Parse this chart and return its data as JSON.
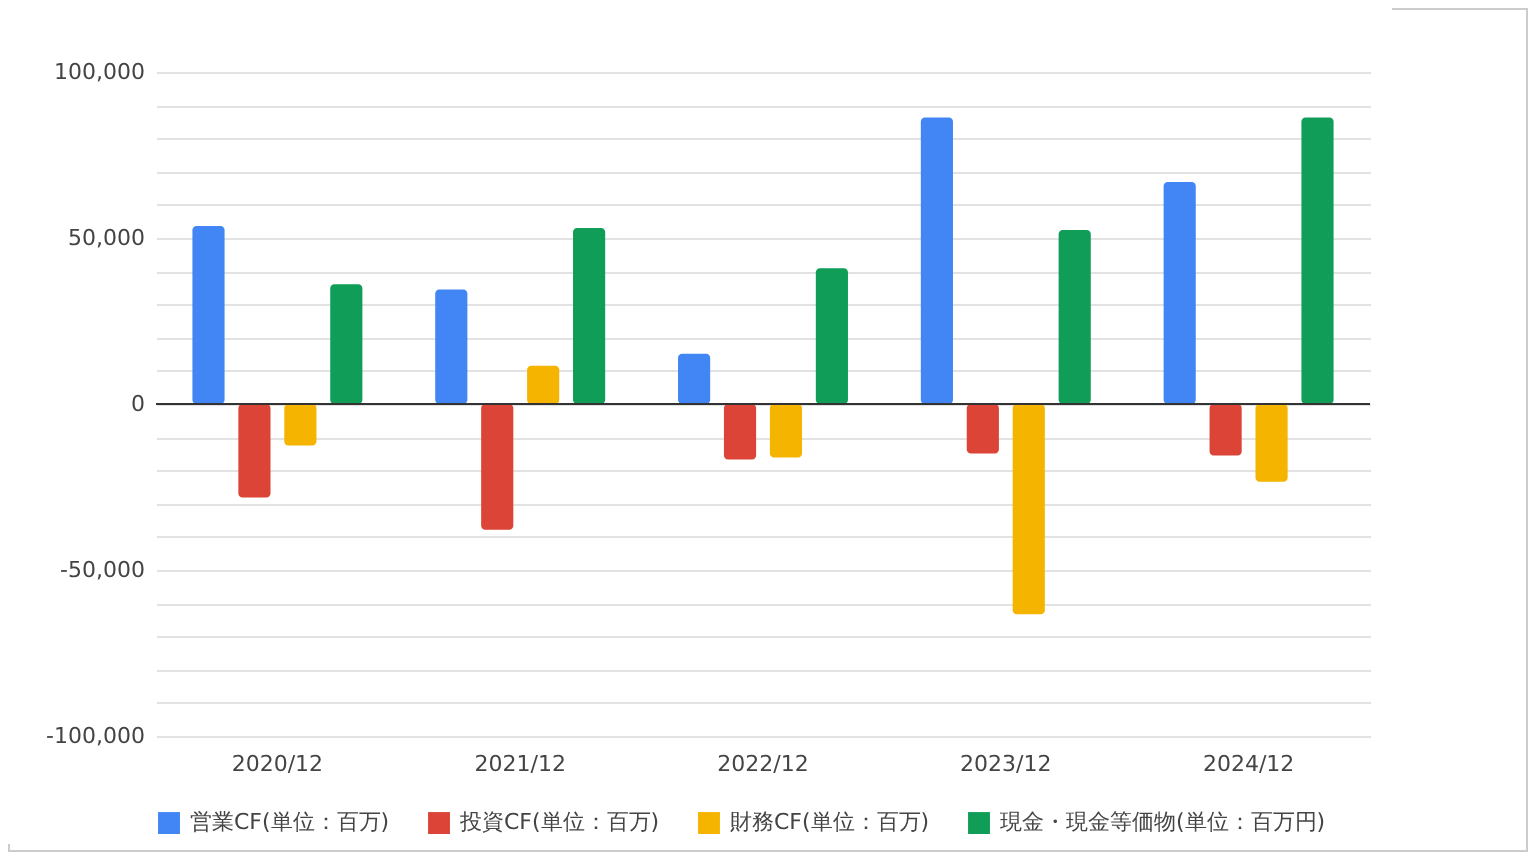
{
  "chart_data": {
    "type": "bar",
    "categories": [
      "2020/12",
      "2021/12",
      "2022/12",
      "2023/12",
      "2024/12"
    ],
    "series": [
      {
        "name": "営業CF(単位：百万)",
        "color": "#4285f4",
        "values": [
          53600,
          34500,
          15100,
          86300,
          66900
        ]
      },
      {
        "name": "投資CF(単位：百万)",
        "color": "#db4437",
        "values": [
          -28200,
          -37900,
          -16700,
          -14900,
          -15500
        ]
      },
      {
        "name": "財務CF(単位：百万)",
        "color": "#f4b400",
        "values": [
          -12500,
          11500,
          -16100,
          -63300,
          -23400
        ]
      },
      {
        "name": "現金・現金等価物(単位：百万円)",
        "color": "#0f9d58",
        "values": [
          36100,
          53000,
          40900,
          52400,
          86300
        ]
      }
    ],
    "ylim": [
      -100000,
      100000
    ],
    "yticks": [
      {
        "value": -100000,
        "label": "-100,000"
      },
      {
        "value": -90000,
        "label": null
      },
      {
        "value": -80000,
        "label": null
      },
      {
        "value": -70000,
        "label": null
      },
      {
        "value": -60000,
        "label": null
      },
      {
        "value": -50000,
        "label": "-50,000"
      },
      {
        "value": -40000,
        "label": null
      },
      {
        "value": -30000,
        "label": null
      },
      {
        "value": -20000,
        "label": null
      },
      {
        "value": -10000,
        "label": null
      },
      0,
      {
        "value": 10000,
        "label": null
      },
      {
        "value": 20000,
        "label": null
      },
      {
        "value": 30000,
        "label": null
      },
      {
        "value": 40000,
        "label": null
      },
      {
        "value": 50000,
        "label": "50,000"
      },
      {
        "value": 60000,
        "label": null
      },
      {
        "value": 70000,
        "label": null
      },
      {
        "value": 80000,
        "label": null
      },
      {
        "value": 90000,
        "label": null
      },
      {
        "value": 100000,
        "label": "100,000"
      }
    ],
    "grid": true,
    "legend": "bottom"
  }
}
